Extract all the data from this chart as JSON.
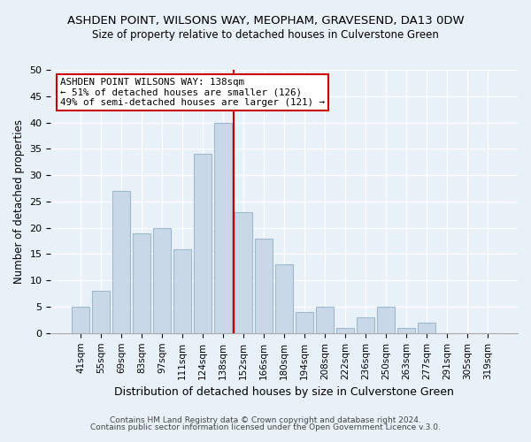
{
  "title": "ASHDEN POINT, WILSONS WAY, MEOPHAM, GRAVESEND, DA13 0DW",
  "subtitle": "Size of property relative to detached houses in Culverstone Green",
  "xlabel": "Distribution of detached houses by size in Culverstone Green",
  "ylabel": "Number of detached properties",
  "bin_labels": [
    "41sqm",
    "55sqm",
    "69sqm",
    "83sqm",
    "97sqm",
    "111sqm",
    "124sqm",
    "138sqm",
    "152sqm",
    "166sqm",
    "180sqm",
    "194sqm",
    "208sqm",
    "222sqm",
    "236sqm",
    "250sqm",
    "263sqm",
    "277sqm",
    "291sqm",
    "305sqm",
    "319sqm"
  ],
  "bar_heights": [
    5,
    8,
    27,
    19,
    20,
    16,
    34,
    40,
    23,
    18,
    13,
    4,
    5,
    1,
    3,
    5,
    1,
    2,
    0,
    0,
    0
  ],
  "bar_color": "#c8d8e8",
  "bar_edge_color": "#a0b8cc",
  "highlight_index": 7,
  "highlight_line_color": "#cc0000",
  "ylim": [
    0,
    50
  ],
  "yticks": [
    0,
    5,
    10,
    15,
    20,
    25,
    30,
    35,
    40,
    45,
    50
  ],
  "annotation_title": "ASHDEN POINT WILSONS WAY: 138sqm",
  "annotation_line1": "← 51% of detached houses are smaller (126)",
  "annotation_line2": "49% of semi-detached houses are larger (121) →",
  "footer1": "Contains HM Land Registry data © Crown copyright and database right 2024.",
  "footer2": "Contains public sector information licensed under the Open Government Licence v.3.0.",
  "bg_color": "#e8f0f8",
  "plot_bg_color": "#e8f0f8",
  "grid_color": "white"
}
